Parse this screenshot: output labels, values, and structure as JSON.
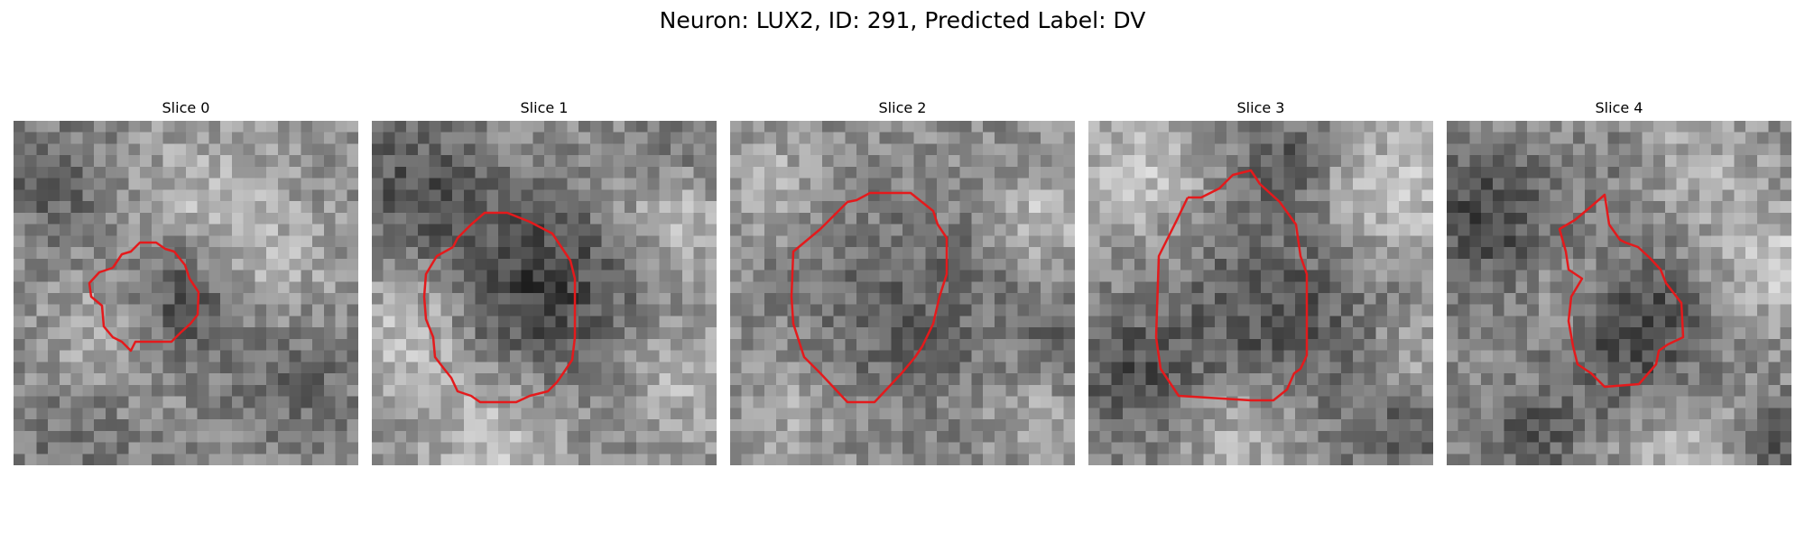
{
  "figure": {
    "title": "Neuron: LUX2, ID: 291, Predicted Label: DV"
  },
  "panels": [
    {
      "title": "Slice 0"
    },
    {
      "title": "Slice 1"
    },
    {
      "title": "Slice 2"
    },
    {
      "title": "Slice 3"
    },
    {
      "title": "Slice 4"
    }
  ],
  "colors": {
    "outline": "#e41a1c",
    "background": "#ffffff"
  }
}
